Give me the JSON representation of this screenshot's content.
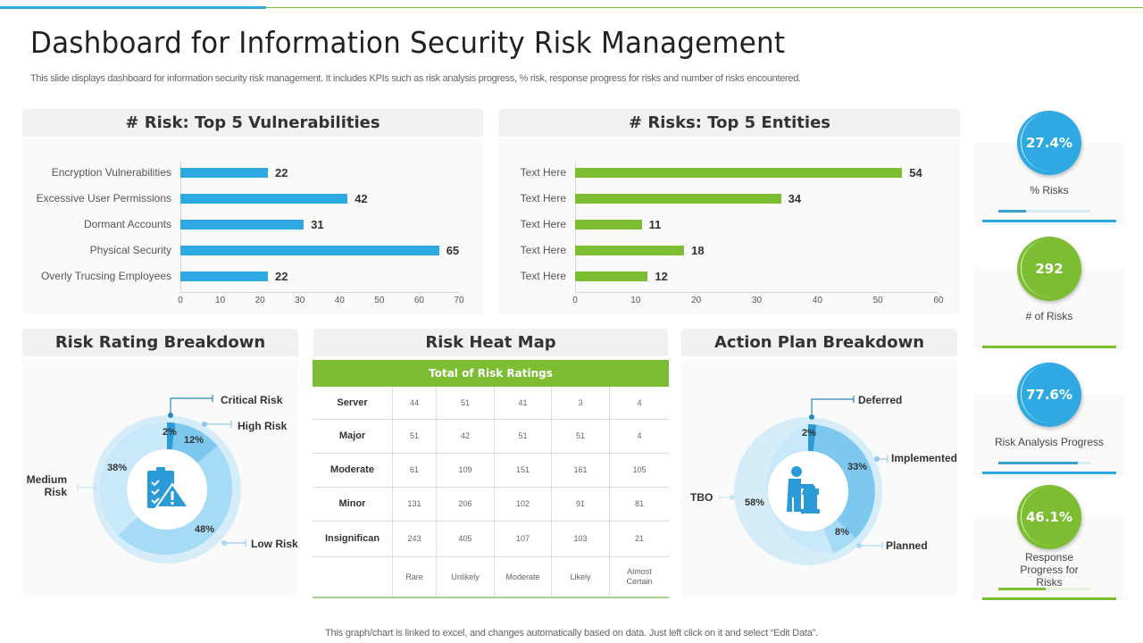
{
  "header": {
    "title": "Dashboard for Information Security Risk Management",
    "subtitle": "This slide displays dashboard for information security risk management. It includes KPIs such as risk analysis progress, % risk, response progress for risks and number of risks encountered."
  },
  "panels": {
    "vulnerabilities_title": "# Risk: Top 5 Vulnerabilities",
    "entities_title": "# Risks: Top 5 Entities",
    "rating_title": "Risk Rating Breakdown",
    "heatmap_title": "Risk Heat Map",
    "action_title": "Action Plan Breakdown"
  },
  "colors": {
    "blue": "#2ea9e1",
    "green": "#7cbd31",
    "light_blue": "#b9e0f4"
  },
  "kpis": [
    {
      "value": "27.4%",
      "label": "% Risks",
      "color": "#2ea9e1",
      "progress": 30
    },
    {
      "value": "292",
      "label": "# of Risks",
      "color": "#7cbd31",
      "progress": 0
    },
    {
      "value": "77.6%",
      "label": "Risk Analysis Progress",
      "color": "#2ea9e1",
      "progress": 86
    },
    {
      "value": "46.1%",
      "label": "Response Progress for Risks",
      "color": "#7cbd31",
      "progress": 51
    }
  ],
  "heatmap": {
    "header": "Total of Risk Ratings",
    "rows": [
      {
        "label": "Server",
        "values": [
          "44",
          "51",
          "41",
          "3",
          "4"
        ]
      },
      {
        "label": "Major",
        "values": [
          "51",
          "42",
          "51",
          "51",
          "4"
        ]
      },
      {
        "label": "Moderate",
        "values": [
          "61",
          "109",
          "151",
          "161",
          "105"
        ]
      },
      {
        "label": "Minor",
        "values": [
          "131",
          "206",
          "102",
          "91",
          "81"
        ]
      },
      {
        "label": "Insignifican",
        "values": [
          "243",
          "405",
          "107",
          "103",
          "21"
        ]
      }
    ],
    "columns": [
      "Rare",
      "Unlikely",
      "Moderate",
      "Likely",
      "Almost Certain"
    ]
  },
  "footer": "This graph/chart is linked to excel,  and changes automatically based on data. Just left click on it and select “Edit Data”.",
  "chart_data": [
    {
      "type": "bar",
      "orientation": "horizontal",
      "title": "# Risk: Top 5 Vulnerabilities",
      "categories": [
        "Encryption Vulnerabilities",
        "Excessive User Permissions",
        "Dormant Accounts",
        "Physical Security",
        "Overly Trucsing Employees"
      ],
      "values": [
        22,
        42,
        31,
        65,
        22
      ],
      "xlim": [
        0,
        70
      ],
      "xticks": [
        0,
        10,
        20,
        30,
        40,
        50,
        60,
        70
      ],
      "color": "#2ea9e1",
      "grid": false,
      "xlabel": "",
      "ylabel": ""
    },
    {
      "type": "bar",
      "orientation": "horizontal",
      "title": "# Risks: Top 5 Entities",
      "categories": [
        "Text Here",
        "Text Here",
        "Text Here",
        "Text Here",
        "Text Here"
      ],
      "values": [
        54,
        34,
        11,
        18,
        12
      ],
      "xlim": [
        0,
        60
      ],
      "xticks": [
        0,
        10,
        20,
        30,
        40,
        50,
        60
      ],
      "color": "#7cbd31",
      "grid": false,
      "xlabel": "",
      "ylabel": ""
    },
    {
      "type": "pie",
      "variant": "donut",
      "title": "Risk Rating Breakdown",
      "labels": [
        "Critical Risk",
        "High Risk",
        "Low Risk",
        "Medium Risk"
      ],
      "values": [
        2,
        12,
        48,
        38
      ],
      "value_labels": [
        "2%",
        "12%",
        "48%",
        "38%"
      ]
    },
    {
      "type": "pie",
      "variant": "donut",
      "title": "Action Plan Breakdown",
      "labels": [
        "Deferred",
        "Implemented",
        "Planned",
        "TBO"
      ],
      "values": [
        2,
        33,
        8,
        58
      ],
      "value_labels": [
        "2%",
        "33%",
        "8%",
        "58%"
      ]
    },
    {
      "type": "table",
      "title": "Risk Heat Map",
      "header": "Total of Risk Ratings",
      "row_labels": [
        "Server",
        "Major",
        "Moderate",
        "Minor",
        "Insignifican"
      ],
      "column_labels": [
        "Rare",
        "Unlikely",
        "Moderate",
        "Likely",
        "Almost Certain"
      ],
      "values": [
        [
          44,
          51,
          41,
          3,
          4
        ],
        [
          51,
          42,
          51,
          51,
          4
        ],
        [
          61,
          109,
          151,
          161,
          105
        ],
        [
          131,
          206,
          102,
          91,
          81
        ],
        [
          243,
          405,
          107,
          103,
          21
        ]
      ]
    }
  ]
}
